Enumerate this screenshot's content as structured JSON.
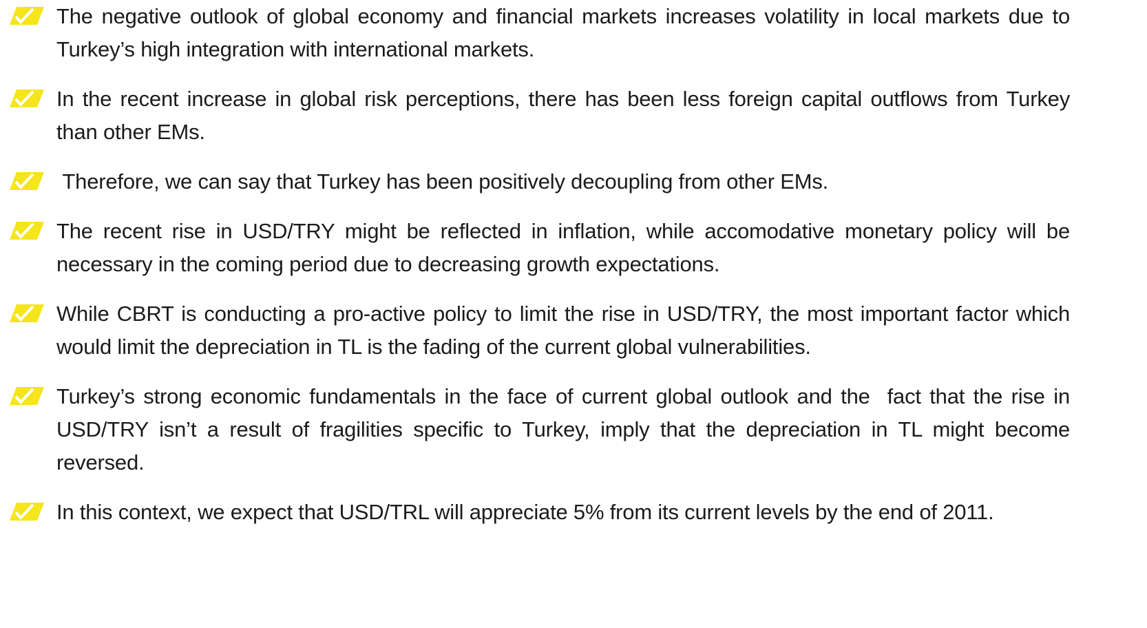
{
  "bullets": [
    "The negative outlook of global economy and financial markets increases volatility in local markets due to Turkey’s high integration with international markets.",
    "In the recent increase in global risk perceptions, there has been less foreign capital outflows from Turkey than other EMs.",
    " Therefore, we can say that Turkey has been positively decoupling from other EMs.",
    "The recent rise in USD/TRY might be reflected in inflation, while accomodative monetary policy will be necessary in the coming period due to decreasing growth expectations.",
    "While CBRT is conducting a pro-active policy to limit the rise in USD/TRY, the most important factor which would limit the depreciation in TL is the fading of the current global vulnerabilities.",
    "Turkey’s strong economic fundamentals in the face of current global outlook and the  fact that the rise in USD/TRY isn’t a result of fragilities specific to Turkey, imply that the depreciation in TL might become reversed.",
    "In this context, we expect that USD/TRL will appreciate 5% from its current levels by the end of 2011."
  ]
}
